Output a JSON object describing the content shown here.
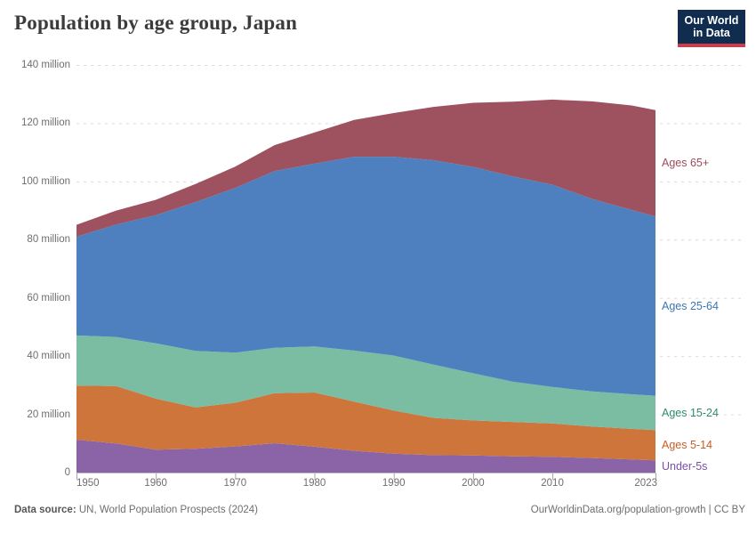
{
  "header": {
    "title": "Population by age group, Japan"
  },
  "logo": {
    "line1": "Our World",
    "line2": "in Data",
    "bg_color": "#102d4f",
    "accent_color": "#d13b47"
  },
  "chart_data": {
    "type": "area",
    "stacked": true,
    "title": "Population by age group, Japan",
    "unit": "million people",
    "grid": "horizontal-dashed",
    "legend_position": "right",
    "x_range": [
      1950,
      2023
    ],
    "y_max": 140,
    "x": [
      1950,
      1955,
      1960,
      1965,
      1970,
      1975,
      1980,
      1985,
      1990,
      1995,
      2000,
      2005,
      2010,
      2015,
      2020,
      2023
    ],
    "x_ticks": [
      {
        "value": 1950,
        "label": "1950"
      },
      {
        "value": 1960,
        "label": "1960"
      },
      {
        "value": 1970,
        "label": "1970"
      },
      {
        "value": 1980,
        "label": "1980"
      },
      {
        "value": 1990,
        "label": "1990"
      },
      {
        "value": 2000,
        "label": "2000"
      },
      {
        "value": 2010,
        "label": "2010"
      },
      {
        "value": 2023,
        "label": "2023"
      }
    ],
    "y_ticks": [
      {
        "value": 0,
        "label": "0"
      },
      {
        "value": 20,
        "label": "20 million"
      },
      {
        "value": 40,
        "label": "40 million"
      },
      {
        "value": 60,
        "label": "60 million"
      },
      {
        "value": 80,
        "label": "80 million"
      },
      {
        "value": 100,
        "label": "100 million"
      },
      {
        "value": 120,
        "label": "120 million"
      },
      {
        "value": 140,
        "label": "140 million"
      }
    ],
    "series": [
      {
        "name": "Under-5s",
        "fill": "#8b64a7",
        "label_color": "#7a4fa4",
        "values": [
          11.3,
          10.0,
          7.9,
          8.2,
          9.0,
          10.1,
          8.9,
          7.5,
          6.5,
          6.0,
          5.9,
          5.6,
          5.4,
          5.0,
          4.5,
          4.2
        ]
      },
      {
        "name": "Ages 5-14",
        "fill": "#ce753b",
        "label_color": "#c95c25",
        "values": [
          18.6,
          19.7,
          17.5,
          14.2,
          15.0,
          17.2,
          18.6,
          16.9,
          14.8,
          12.8,
          12.0,
          11.8,
          11.5,
          10.8,
          10.5,
          10.4
        ]
      },
      {
        "name": "Ages 15-24",
        "fill": "#7abda2",
        "label_color": "#2f8a71",
        "values": [
          17.2,
          16.9,
          19.0,
          19.4,
          17.2,
          15.6,
          15.8,
          17.5,
          18.9,
          18.3,
          16.2,
          13.8,
          12.5,
          12.1,
          11.9,
          11.8
        ]
      },
      {
        "name": "Ages 25-64",
        "fill": "#4e80c0",
        "label_color": "#3c76b4",
        "values": [
          33.9,
          38.6,
          44.0,
          51.1,
          56.6,
          60.7,
          62.8,
          66.6,
          68.3,
          70.2,
          70.9,
          70.5,
          69.5,
          66.1,
          63.3,
          61.6
        ]
      },
      {
        "name": "Ages 65+",
        "fill": "#9e515f",
        "label_color": "#9e4b5c",
        "values": [
          4.1,
          4.8,
          5.3,
          6.2,
          7.3,
          8.9,
          10.7,
          12.6,
          15.0,
          18.3,
          22.0,
          25.7,
          29.2,
          33.5,
          35.9,
          36.5
        ]
      }
    ]
  },
  "footer": {
    "source_label": "Data source:",
    "source_text": "UN, World Population Prospects (2024)",
    "credit": "OurWorldinData.org/population-growth | CC BY"
  }
}
